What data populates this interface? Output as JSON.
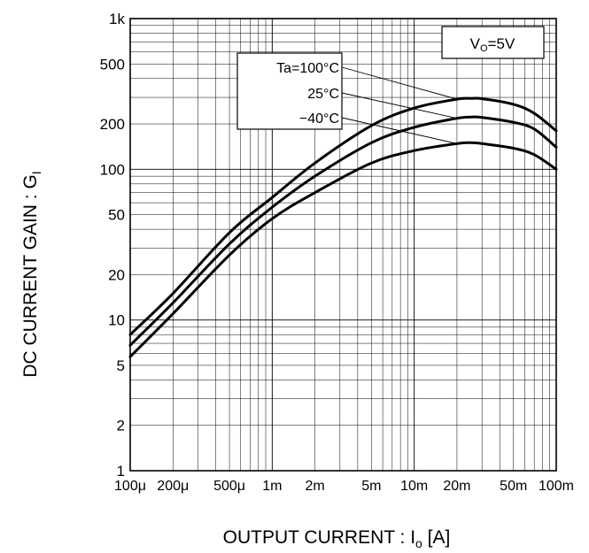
{
  "chart_data": {
    "type": "line",
    "title": "",
    "xlabel": "OUTPUT CURRENT : Io [A]",
    "xlabel_main": "OUTPUT CURRENT : I",
    "xlabel_sub": "o",
    "xlabel_unit": " [A]",
    "ylabel": "DC CURRENT GAIN : GI",
    "ylabel_main": "DC CURRENT GAIN : G",
    "ylabel_sub": "I",
    "x_scale": "log",
    "y_scale": "log",
    "xlim": [
      0.0001,
      0.1
    ],
    "ylim": [
      1,
      1000
    ],
    "grid": true,
    "x_ticks": [
      {
        "value": 0.0001,
        "label": "100μ"
      },
      {
        "value": 0.0002,
        "label": "200μ"
      },
      {
        "value": 0.0005,
        "label": "500μ"
      },
      {
        "value": 0.001,
        "label": "1m"
      },
      {
        "value": 0.002,
        "label": "2m"
      },
      {
        "value": 0.005,
        "label": "5m"
      },
      {
        "value": 0.01,
        "label": "10m"
      },
      {
        "value": 0.02,
        "label": "20m"
      },
      {
        "value": 0.05,
        "label": "50m"
      },
      {
        "value": 0.1,
        "label": "100m"
      }
    ],
    "y_ticks": [
      {
        "value": 1,
        "label": "1"
      },
      {
        "value": 2,
        "label": "2"
      },
      {
        "value": 5,
        "label": "5"
      },
      {
        "value": 10,
        "label": "10"
      },
      {
        "value": 20,
        "label": "20"
      },
      {
        "value": 50,
        "label": "50"
      },
      {
        "value": 100,
        "label": "100"
      },
      {
        "value": 200,
        "label": "200"
      },
      {
        "value": 500,
        "label": "500"
      },
      {
        "value": 1000,
        "label": "1k"
      }
    ],
    "condition_main": "V",
    "condition_sub": "O",
    "condition_rest": "=5V",
    "series_labels": [
      "Ta=100°C",
      "25°C",
      "−40°C"
    ],
    "series": [
      {
        "x": [
          0.0001,
          0.0002,
          0.0005,
          0.001,
          0.002,
          0.005,
          0.01,
          0.02,
          0.025,
          0.03,
          0.05,
          0.07,
          0.1
        ],
        "y": [
          8,
          15,
          38,
          65,
          110,
          195,
          255,
          292,
          295,
          294,
          270,
          235,
          180
        ]
      },
      {
        "x": [
          0.0001,
          0.0002,
          0.0005,
          0.001,
          0.002,
          0.005,
          0.01,
          0.02,
          0.025,
          0.03,
          0.05,
          0.07,
          0.1
        ],
        "y": [
          6.8,
          13,
          32,
          56,
          90,
          150,
          190,
          218,
          222,
          221,
          205,
          185,
          140
        ]
      },
      {
        "x": [
          0.0001,
          0.0002,
          0.0005,
          0.001,
          0.002,
          0.005,
          0.01,
          0.02,
          0.025,
          0.03,
          0.05,
          0.07,
          0.1
        ],
        "y": [
          5.7,
          11,
          27,
          47,
          70,
          110,
          133,
          148,
          150,
          148,
          138,
          125,
          100
        ]
      }
    ]
  }
}
